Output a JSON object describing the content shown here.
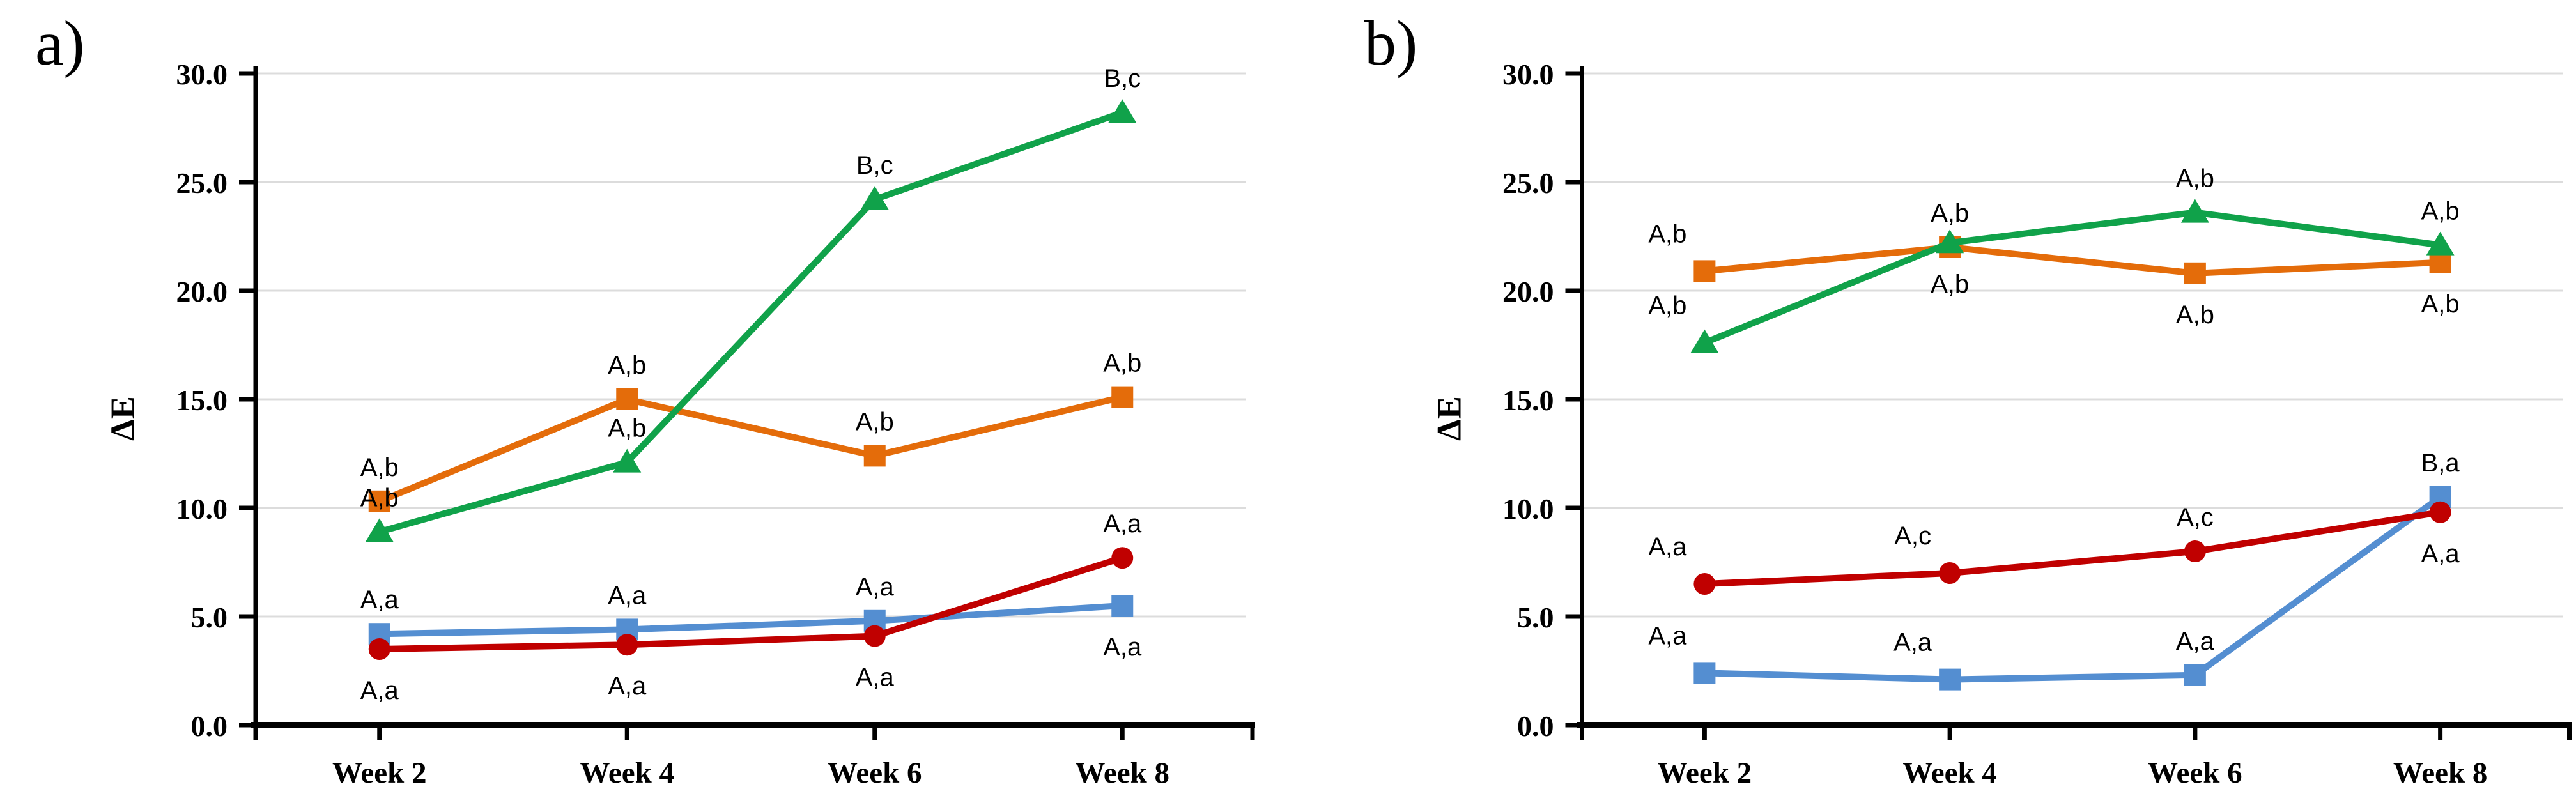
{
  "figure": {
    "background": "#ffffff",
    "gridline_color": "#DCDCDC",
    "axis_color": "#000000"
  },
  "chart_data": [
    {
      "panel_label": "a)",
      "type": "line",
      "title": "",
      "ylabel": "ΔE",
      "categories": [
        "Week 2",
        "Week 4",
        "Week 6",
        "Week 8"
      ],
      "ylim": [
        0,
        30
      ],
      "ytick_labels": [
        "0.0",
        "5.0",
        "10.0",
        "15.0",
        "20.0",
        "25.0",
        "30.0"
      ],
      "grid": true,
      "legend": "none",
      "series": [
        {
          "id": "blue-squares",
          "color": "#548ED1",
          "marker": "square",
          "values": [
            4.2,
            4.4,
            4.8,
            5.5
          ],
          "point_labels": [
            "A,a",
            "A,a",
            "A,a",
            "A,a"
          ],
          "label_positions": [
            "above",
            "above",
            "above",
            "below"
          ]
        },
        {
          "id": "red-circles",
          "color": "#C00000",
          "marker": "circle",
          "values": [
            3.5,
            3.7,
            4.1,
            7.7
          ],
          "point_labels": [
            "A,a",
            "A,a",
            "A,a",
            "A,a"
          ],
          "label_positions": [
            "below",
            "below",
            "below",
            "above"
          ]
        },
        {
          "id": "orange-squares",
          "color": "#E46C0A",
          "marker": "square",
          "values": [
            10.3,
            15.0,
            12.4,
            15.1
          ],
          "point_labels": [
            "A,b",
            "A,b",
            "A,b",
            "A,b"
          ],
          "label_positions": [
            "above",
            "above",
            "above",
            "above"
          ]
        },
        {
          "id": "green-triangles",
          "color": "#10A24A",
          "marker": "triangle",
          "values": [
            8.9,
            12.1,
            24.2,
            28.2
          ],
          "point_labels": [
            "A,b",
            "A,b",
            "B,c",
            "B,c"
          ],
          "label_positions": [
            "above",
            "above",
            "above",
            "above"
          ]
        }
      ]
    },
    {
      "panel_label": "b)",
      "type": "line",
      "title": "",
      "ylabel": "ΔE",
      "categories": [
        "Week 2",
        "Week 4",
        "Week 6",
        "Week 8"
      ],
      "ylim": [
        0,
        30
      ],
      "ytick_labels": [
        "0.0",
        "5.0",
        "10.0",
        "15.0",
        "20.0",
        "25.0",
        "30.0"
      ],
      "grid": true,
      "legend": "none",
      "series": [
        {
          "id": "blue-squares",
          "color": "#548ED1",
          "marker": "square",
          "values": [
            2.4,
            2.1,
            2.3,
            10.5
          ],
          "point_labels": [
            "A,a",
            "A,a",
            "A,a",
            "B,a"
          ],
          "label_positions": [
            "above-left",
            "above-left",
            "above",
            "above"
          ]
        },
        {
          "id": "red-circles",
          "color": "#C00000",
          "marker": "circle",
          "values": [
            6.5,
            7.0,
            8.0,
            9.8
          ],
          "point_labels": [
            "A,a",
            "A,c",
            "A,c",
            "A,a"
          ],
          "label_positions": [
            "above-left",
            "above-left",
            "above",
            "below"
          ]
        },
        {
          "id": "orange-squares",
          "color": "#E46C0A",
          "marker": "square",
          "values": [
            20.9,
            22.0,
            20.8,
            21.3
          ],
          "point_labels": [
            "A,b",
            "A,b",
            "A,b",
            "A,b"
          ],
          "label_positions": [
            "above-left",
            "above",
            "below",
            "below"
          ]
        },
        {
          "id": "green-triangles",
          "color": "#10A24A",
          "marker": "triangle",
          "values": [
            17.6,
            22.2,
            23.6,
            22.1
          ],
          "point_labels": [
            "A,b",
            "A,b",
            "A,b",
            "A,b"
          ],
          "label_positions": [
            "above-left",
            "below",
            "above",
            "above"
          ]
        }
      ]
    }
  ]
}
